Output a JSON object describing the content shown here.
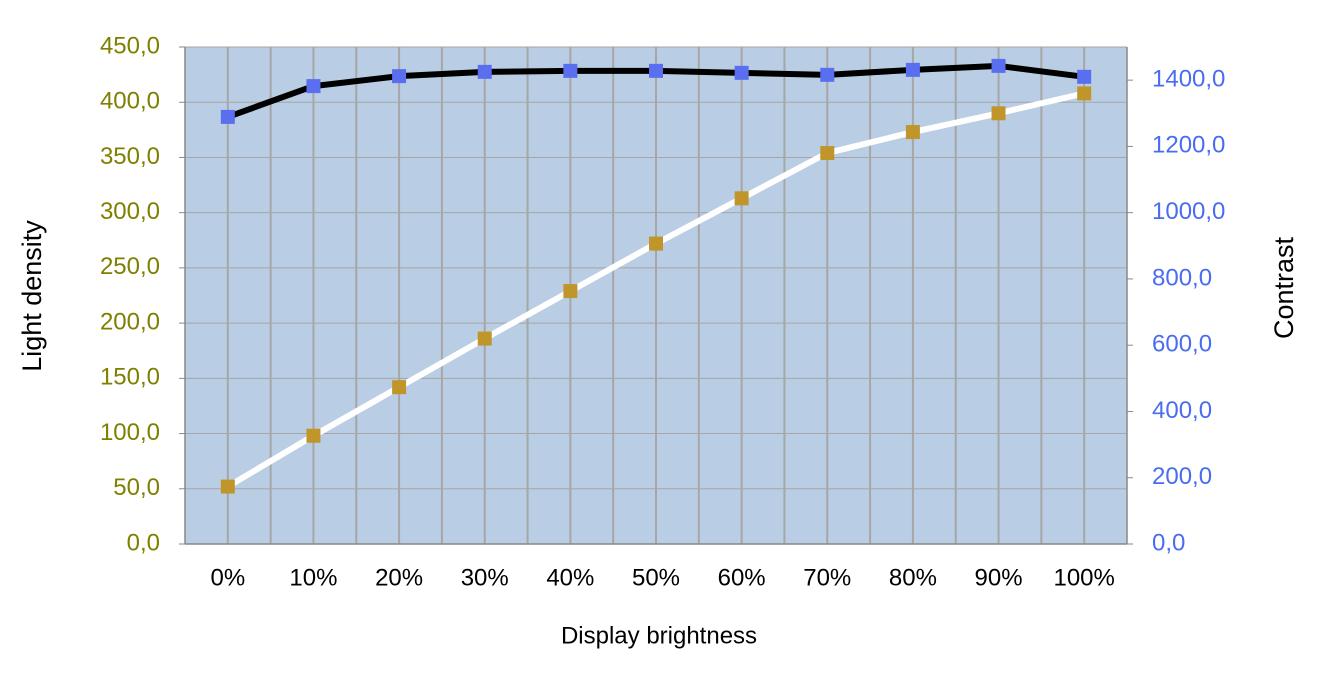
{
  "chart_data": {
    "type": "line",
    "xlabel": "Display brightness",
    "ylabel": "Light density",
    "y2label": "Contrast",
    "categories": [
      "0%",
      "10%",
      "20%",
      "30%",
      "40%",
      "50%",
      "60%",
      "70%",
      "80%",
      "90%",
      "100%"
    ],
    "series": [
      {
        "name": "Light density",
        "color": "#c0962a",
        "line_color": "#ffffff",
        "values": [
          52,
          98,
          142,
          186,
          229,
          272,
          313,
          354,
          373,
          390,
          408
        ]
      },
      {
        "name": "Contrast",
        "color": "#5a6ef0",
        "line_color": "#000000",
        "axis": "y2",
        "values": [
          1289,
          1382,
          1412,
          1425,
          1428,
          1428,
          1422,
          1416,
          1431,
          1443,
          1410
        ]
      }
    ],
    "ylim": [
      0,
      450
    ],
    "yticks": [
      {
        "value": 0,
        "label": "0,0"
      },
      {
        "value": 50,
        "label": "50,0"
      },
      {
        "value": 100,
        "label": "100,0"
      },
      {
        "value": 150,
        "label": "150,0"
      },
      {
        "value": 200,
        "label": "200,0"
      },
      {
        "value": 250,
        "label": "250,0"
      },
      {
        "value": 300,
        "label": "300,0"
      },
      {
        "value": 350,
        "label": "350,0"
      },
      {
        "value": 400,
        "label": "400,0"
      },
      {
        "value": 450,
        "label": "450,0"
      }
    ],
    "y2lim": [
      0,
      1500
    ],
    "y2ticks": [
      {
        "value": 0,
        "label": "0,0"
      },
      {
        "value": 200,
        "label": "200,0"
      },
      {
        "value": 400,
        "label": "400,0"
      },
      {
        "value": 600,
        "label": "600,0"
      },
      {
        "value": 800,
        "label": "800,0"
      },
      {
        "value": 1000,
        "label": "1000,0"
      },
      {
        "value": 1200,
        "label": "1200,0"
      },
      {
        "value": 1400,
        "label": "1400,0"
      }
    ],
    "grid": true,
    "background": "#b9cde4"
  }
}
